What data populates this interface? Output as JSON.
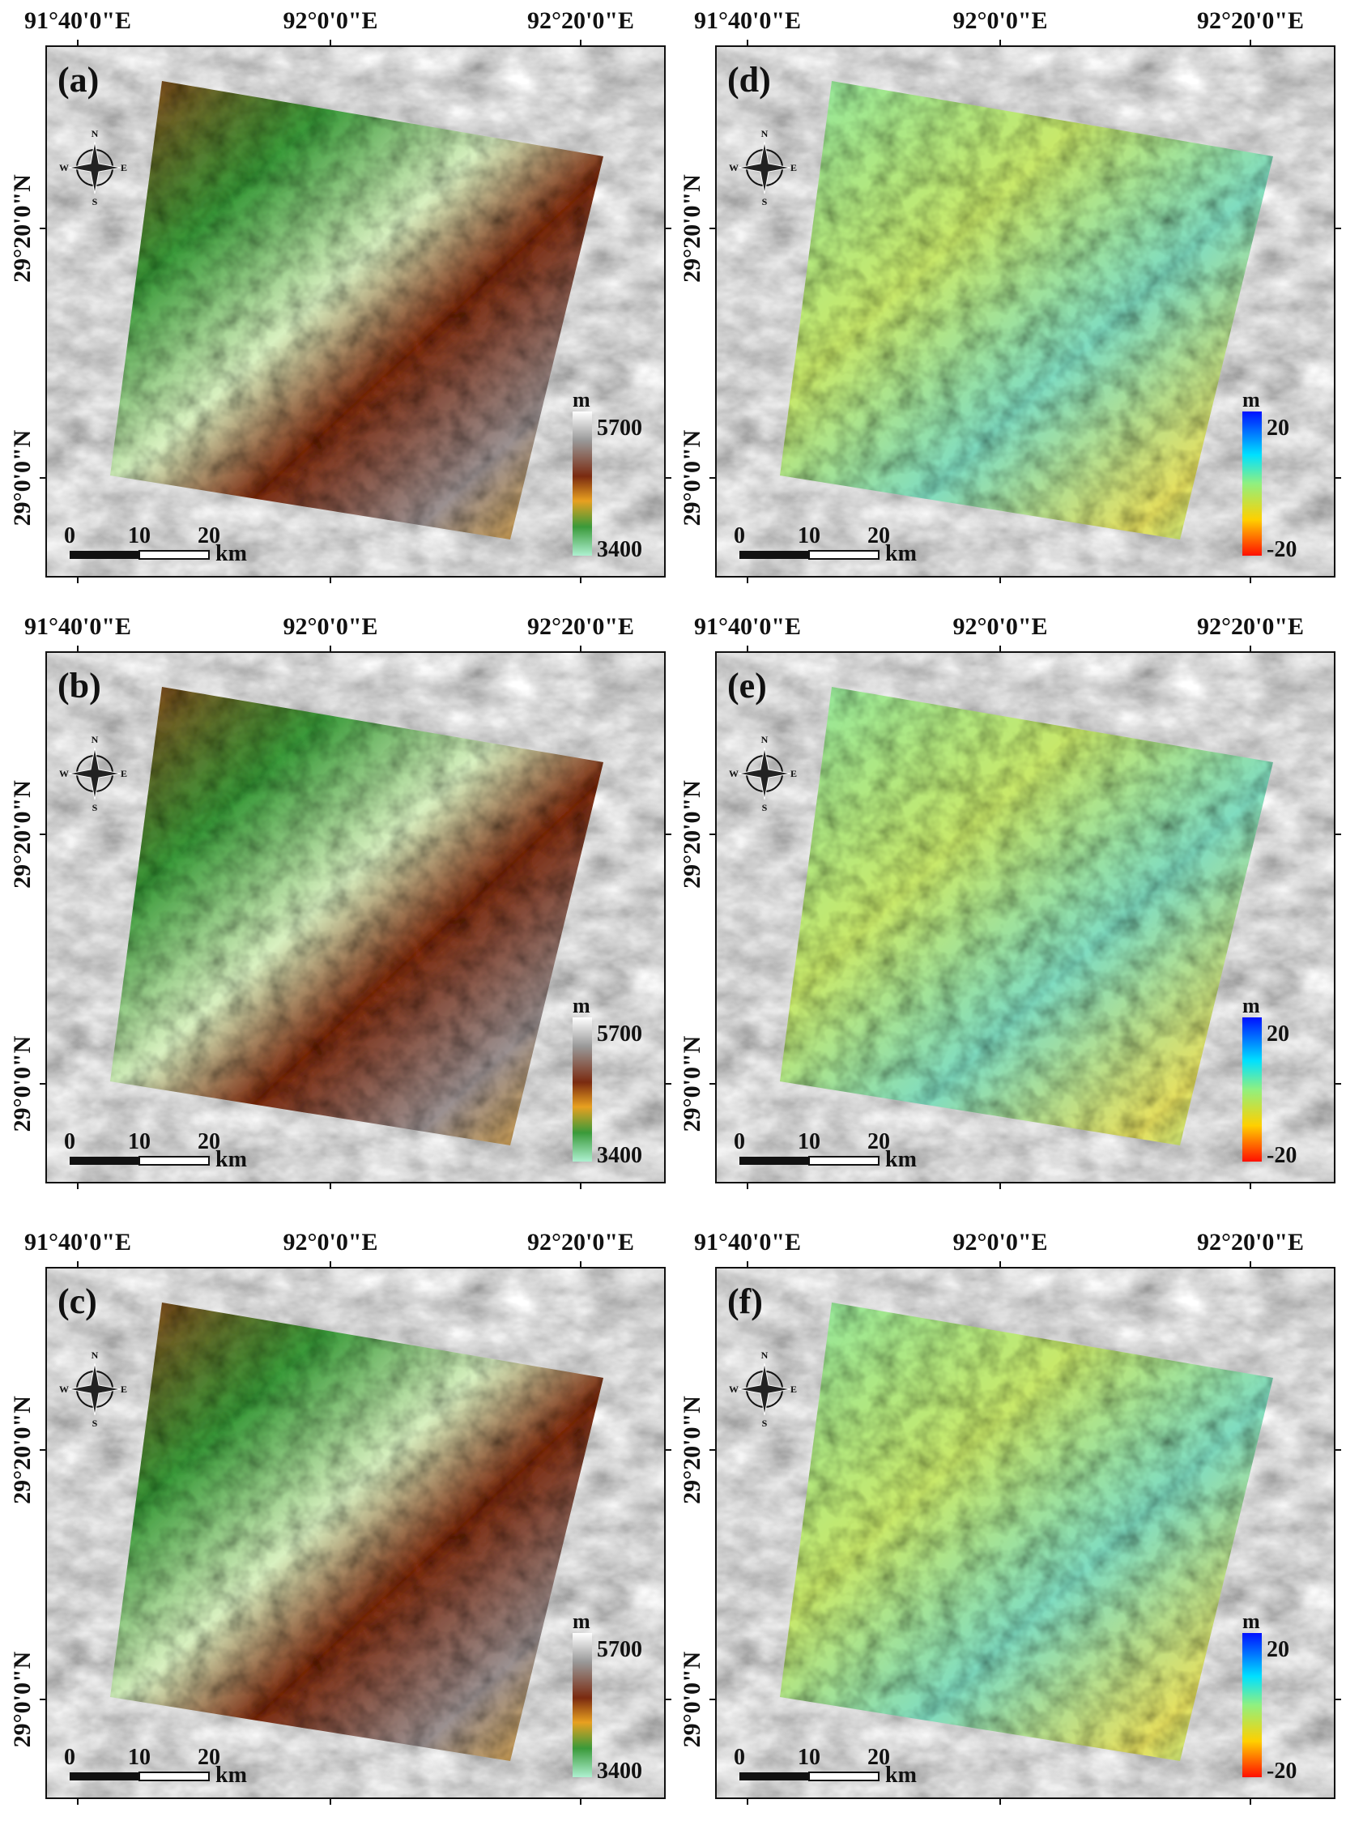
{
  "axes": {
    "lon_labels": [
      "91°40'0\"E",
      "92°0'0\"E",
      "92°20'0\"E"
    ],
    "lat_labels": [
      "29°20'0\"N",
      "29°0'0\"N"
    ],
    "scalebar": {
      "ticks": [
        0,
        10,
        20
      ],
      "unit": "km"
    },
    "compass": [
      "N",
      "E",
      "S",
      "W"
    ]
  },
  "panels": [
    {
      "label": "(a)",
      "colormap": "elevation",
      "legend": {
        "unit": "m",
        "max": 5700,
        "min": 3400
      }
    },
    {
      "label": "(d)",
      "colormap": "difference",
      "legend": {
        "unit": "m",
        "max": 20,
        "min": -20
      }
    },
    {
      "label": "(b)",
      "colormap": "elevation",
      "legend": {
        "unit": "m",
        "max": 5700,
        "min": 3400
      }
    },
    {
      "label": "(e)",
      "colormap": "difference",
      "legend": {
        "unit": "m",
        "max": 20,
        "min": -20
      }
    },
    {
      "label": "(c)",
      "colormap": "elevation",
      "legend": {
        "unit": "m",
        "max": 5700,
        "min": 3400
      }
    },
    {
      "label": "(f)",
      "colormap": "difference",
      "legend": {
        "unit": "m",
        "max": 20,
        "min": -20
      }
    }
  ]
}
